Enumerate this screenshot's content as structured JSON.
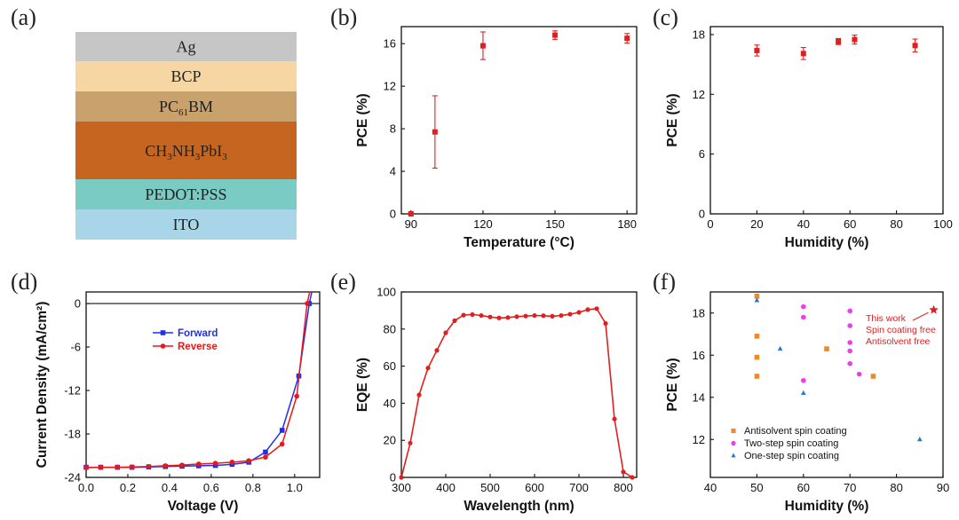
{
  "panel_labels": [
    "(a)",
    "(b)",
    "(c)",
    "(d)",
    "(e)",
    "(f)"
  ],
  "layers": [
    {
      "name": "Ag",
      "color": "#c6c6c6"
    },
    {
      "name": "BCP",
      "color": "#f6d7a4"
    },
    {
      "name": "PC",
      "sub": "61",
      "rest": "BM",
      "color": "#c8a16d"
    },
    {
      "name": "CH",
      "parts": [
        [
          "CH",
          ""
        ],
        [
          "3",
          "sub"
        ],
        [
          "NH",
          ""
        ],
        [
          "3",
          "sub"
        ],
        [
          "PbI",
          ""
        ],
        [
          "3",
          "sub"
        ]
      ],
      "color": "#c5651f"
    },
    {
      "name": "PEDOT:PSS",
      "color": "#79cbc3"
    },
    {
      "name": "ITO",
      "color": "#a8d6e8"
    }
  ],
  "chart_data": [
    {
      "panel": "b",
      "type": "scatter",
      "xlabel": "Temperature (°C)",
      "ylabel": "PCE (%)",
      "xticks": [
        90,
        120,
        150,
        180
      ],
      "yticks": [
        0,
        4,
        8,
        12,
        16
      ],
      "xlim": [
        86,
        184
      ],
      "ylim": [
        0,
        17.6
      ],
      "color": "#e02020",
      "points": [
        {
          "x": 90,
          "y": 0.0,
          "err": 0
        },
        {
          "x": 100,
          "y": 7.7,
          "err": 3.4
        },
        {
          "x": 120,
          "y": 15.8,
          "err": 1.3
        },
        {
          "x": 150,
          "y": 16.8,
          "err": 0.4
        },
        {
          "x": 180,
          "y": 16.5,
          "err": 0.45
        }
      ]
    },
    {
      "panel": "c",
      "type": "scatter",
      "xlabel": "Humidity (%)",
      "ylabel": "PCE (%)",
      "xticks": [
        0,
        20,
        40,
        60,
        80,
        100
      ],
      "yticks": [
        0,
        6,
        12,
        18
      ],
      "xlim": [
        0,
        100
      ],
      "ylim": [
        0,
        18.8
      ],
      "color": "#e02020",
      "points": [
        {
          "x": 20,
          "y": 16.4,
          "err": 0.55
        },
        {
          "x": 40,
          "y": 16.1,
          "err": 0.6
        },
        {
          "x": 55,
          "y": 17.3,
          "err": 0.3
        },
        {
          "x": 62,
          "y": 17.5,
          "err": 0.45
        },
        {
          "x": 88,
          "y": 16.9,
          "err": 0.65
        }
      ]
    },
    {
      "panel": "d",
      "type": "line",
      "xlabel": "Voltage (V)",
      "ylabel": "Current Density (mA/cm²)",
      "xticks": [
        0.0,
        0.2,
        0.4,
        0.6,
        0.8,
        1.0
      ],
      "yticks": [
        0,
        -6,
        -12,
        -18,
        -24
      ],
      "xlim": [
        0,
        1.12
      ],
      "ylim": [
        -24,
        1.6
      ],
      "legend_position": "upper-left",
      "series": [
        {
          "name": "Forward",
          "color": "#1f2ff0",
          "marker": "square",
          "x": [
            0.0,
            0.07,
            0.15,
            0.22,
            0.3,
            0.38,
            0.46,
            0.54,
            0.62,
            0.7,
            0.78,
            0.86,
            0.94,
            1.02,
            1.07
          ],
          "y": [
            -22.6,
            -22.6,
            -22.6,
            -22.6,
            -22.55,
            -22.5,
            -22.45,
            -22.4,
            -22.35,
            -22.2,
            -21.9,
            -20.5,
            -17.5,
            -10.0,
            0.0
          ]
        },
        {
          "name": "Reverse",
          "color": "#e81818",
          "marker": "circle",
          "x": [
            0.0,
            0.07,
            0.15,
            0.22,
            0.3,
            0.38,
            0.46,
            0.54,
            0.62,
            0.7,
            0.78,
            0.86,
            0.94,
            1.01,
            1.06
          ],
          "y": [
            -22.65,
            -22.6,
            -22.6,
            -22.55,
            -22.5,
            -22.4,
            -22.3,
            -22.15,
            -22.05,
            -21.9,
            -21.7,
            -21.2,
            -19.4,
            -12.8,
            0.0
          ]
        }
      ]
    },
    {
      "panel": "e",
      "type": "line",
      "xlabel": "Wavelength (nm)",
      "ylabel": "EQE (%)",
      "xticks": [
        300,
        400,
        500,
        600,
        700,
        800
      ],
      "yticks": [
        0,
        20,
        40,
        60,
        80,
        100
      ],
      "xlim": [
        300,
        830
      ],
      "ylim": [
        0,
        100
      ],
      "color": "#e02020",
      "x": [
        300,
        320,
        340,
        360,
        380,
        400,
        420,
        440,
        460,
        480,
        500,
        520,
        540,
        560,
        580,
        600,
        620,
        640,
        660,
        680,
        700,
        720,
        740,
        760,
        780,
        800,
        820
      ],
      "y": [
        0,
        18.5,
        44.5,
        59,
        68.5,
        78,
        84.5,
        87.5,
        87.8,
        87.3,
        86.5,
        86.0,
        86.2,
        86.7,
        87.0,
        87.3,
        87.2,
        86.9,
        87.3,
        88.0,
        89.0,
        90.5,
        91.0,
        83.0,
        31.5,
        3.0,
        0
      ]
    },
    {
      "panel": "f",
      "type": "scatter",
      "xlabel": "Humidity (%)",
      "ylabel": "PCE (%)",
      "xticks": [
        40,
        50,
        60,
        70,
        80,
        90
      ],
      "yticks": [
        12,
        14,
        16,
        18
      ],
      "xlim": [
        40,
        90
      ],
      "ylim": [
        10.2,
        19
      ],
      "legend_position": "lower-left",
      "series": [
        {
          "name": "Antisolvent spin coating",
          "color": "#ef8a2a",
          "marker": "square",
          "x": [
            50,
            50,
            50,
            50,
            65,
            75
          ],
          "y": [
            18.8,
            16.9,
            15.9,
            15.0,
            16.3,
            15.0
          ]
        },
        {
          "name": "Two-step spin coating",
          "color": "#f03af0",
          "marker": "circle",
          "x": [
            60,
            60,
            60,
            70,
            70,
            70,
            70,
            70,
            72
          ],
          "y": [
            18.3,
            17.8,
            14.8,
            18.1,
            17.4,
            16.6,
            16.2,
            15.6,
            15.1
          ]
        },
        {
          "name": "One-step spin coating",
          "color": "#2a79c4",
          "marker": "triangle",
          "x": [
            50,
            55,
            60,
            85
          ],
          "y": [
            18.6,
            16.3,
            14.2,
            12.0
          ]
        }
      ],
      "highlight": {
        "x": 88,
        "y": 18.15,
        "color": "#e02020",
        "marker": "star",
        "lines": [
          "This work",
          "Spin coating free",
          "Antisolvent free"
        ]
      }
    }
  ]
}
